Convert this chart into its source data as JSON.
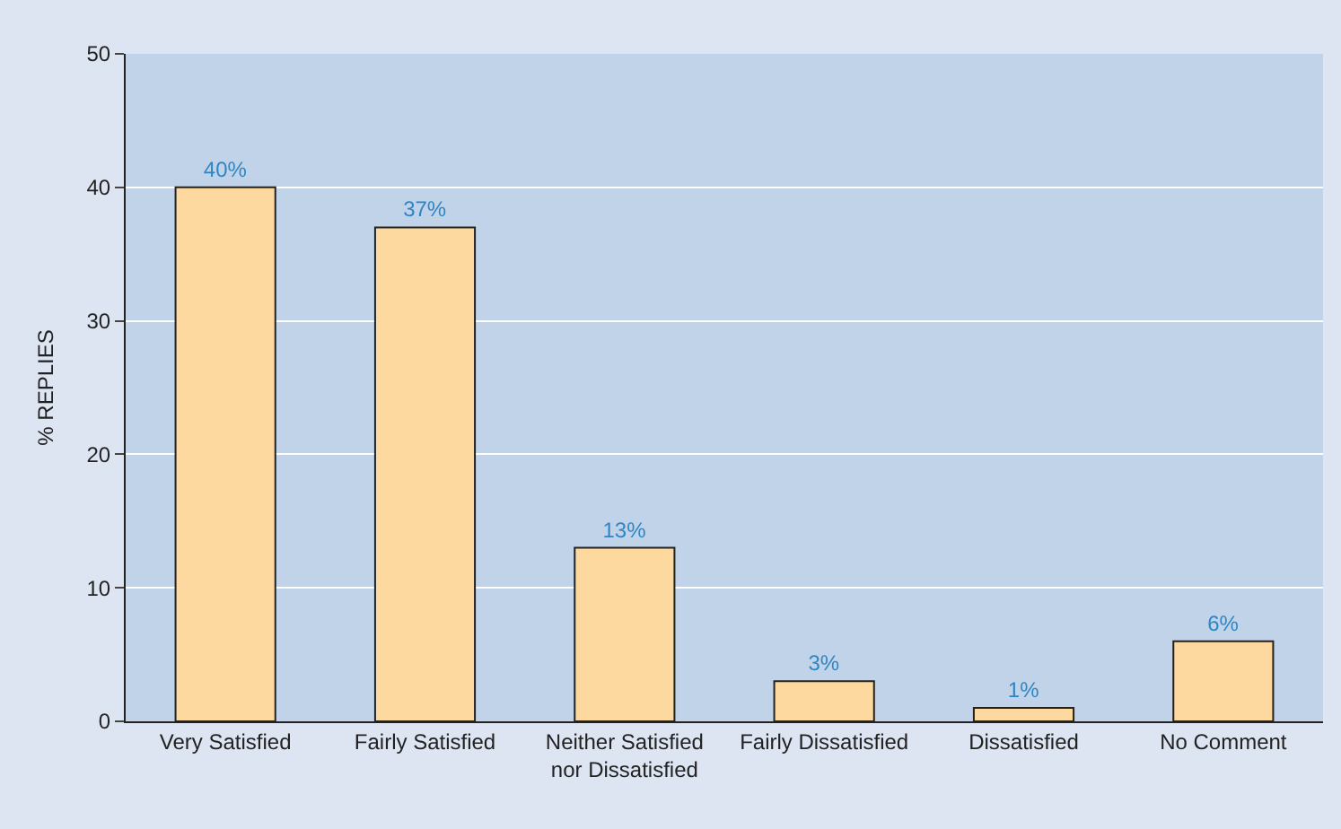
{
  "chart_data": {
    "type": "bar",
    "ylabel": "% REPLIES",
    "categories": [
      "Very Satisfied",
      "Fairly Satisfied",
      "Neither Satisfied nor Dissatisfied",
      "Fairly Dissatisfied",
      "Dissatisfied",
      "No Comment"
    ],
    "values": [
      40,
      37,
      13,
      3,
      1,
      6
    ],
    "value_labels": [
      "40%",
      "37%",
      "13%",
      "3%",
      "1%",
      "6%"
    ],
    "color": "#fdd89f",
    "ylim": [
      0,
      50
    ],
    "yticks": [
      0,
      10,
      20,
      30,
      40,
      50
    ],
    "grid": "y"
  }
}
